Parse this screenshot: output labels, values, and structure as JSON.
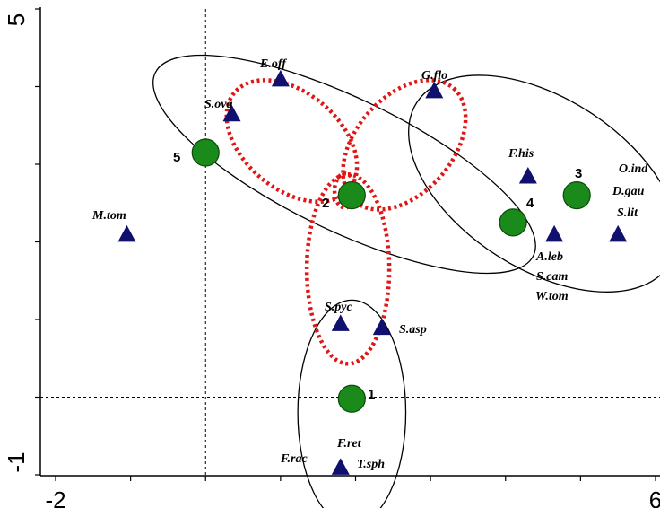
{
  "chart_data": {
    "type": "scatter",
    "title": "",
    "xlabel": "",
    "ylabel": "",
    "xlim": [
      -2,
      6
    ],
    "ylim": [
      -1,
      5
    ],
    "x_tick_labels": [
      "-2",
      "6"
    ],
    "y_tick_labels": [
      "-1",
      "5"
    ],
    "reference_lines": {
      "x": 0,
      "y": 0
    },
    "grid": false,
    "legend": "none",
    "colors": {
      "species_marker": "#10106e",
      "site_marker": "#1a8a1a",
      "site_marker_edge": "#0a4a0a",
      "black_ellipse": "#000000",
      "red_ellipse": "#e01515"
    },
    "series": [
      {
        "kind": "species",
        "marker": "triangle",
        "points": [
          {
            "label": "E.off",
            "x": 1.0,
            "y": 4.1
          },
          {
            "label": "G.flo",
            "x": 3.05,
            "y": 3.95
          },
          {
            "label": "S.ova",
            "x": 0.35,
            "y": 3.65
          },
          {
            "label": "M.tom",
            "x": -1.05,
            "y": 2.1
          },
          {
            "label": "F.his",
            "x": 4.3,
            "y": 2.85
          },
          {
            "label": "A.leb",
            "x": 4.65,
            "y": 2.1
          },
          {
            "label": "O.ind",
            "x": 5.5,
            "y": 2.1
          },
          {
            "label": "S.pyc",
            "x": 1.8,
            "y": 0.95
          },
          {
            "label": "S.asp",
            "x": 2.35,
            "y": 0.9
          },
          {
            "label": "F.ret",
            "x": 1.8,
            "y": -0.9
          }
        ],
        "extra_labels": [
          "D.gau",
          "S.lit",
          "S.cam",
          "W.tom",
          "F.rac",
          "T.sph"
        ]
      },
      {
        "kind": "site",
        "marker": "circle",
        "points": [
          {
            "label": "1",
            "x": 1.95,
            "y": -0.02
          },
          {
            "label": "2",
            "x": 1.95,
            "y": 2.6
          },
          {
            "label": "3",
            "x": 4.95,
            "y": 2.6
          },
          {
            "label": "4",
            "x": 4.1,
            "y": 2.25
          },
          {
            "label": "5",
            "x": 0.0,
            "y": 3.15
          }
        ]
      }
    ],
    "ellipses": [
      {
        "style": "solid",
        "color": "black",
        "cx": 1.85,
        "cy": 3.0,
        "rx": 2.8,
        "ry": 0.85,
        "angle": -0.45
      },
      {
        "style": "solid",
        "color": "black",
        "cx": 4.5,
        "cy": 2.75,
        "rx": 2.0,
        "ry": 1.1,
        "angle": -0.57
      },
      {
        "style": "solid",
        "color": "black",
        "cx": 1.95,
        "cy": -0.2,
        "rx": 0.72,
        "ry": 1.45,
        "angle": 0
      },
      {
        "style": "dotted",
        "color": "red",
        "cx": 1.15,
        "cy": 3.3,
        "rx": 1.0,
        "ry": 0.62,
        "angle": -0.7
      },
      {
        "style": "dotted",
        "color": "red",
        "cx": 2.65,
        "cy": 3.25,
        "rx": 1.0,
        "ry": 0.62,
        "angle": 0.85
      },
      {
        "style": "dotted",
        "color": "red",
        "cx": 1.9,
        "cy": 1.65,
        "rx": 0.55,
        "ry": 1.22,
        "angle": 0
      },
      {
        "style": "dotted",
        "color": "red",
        "cx": 1.86,
        "cy": 2.66,
        "rx": 0.14,
        "ry": 0.22,
        "angle": 0
      }
    ]
  }
}
